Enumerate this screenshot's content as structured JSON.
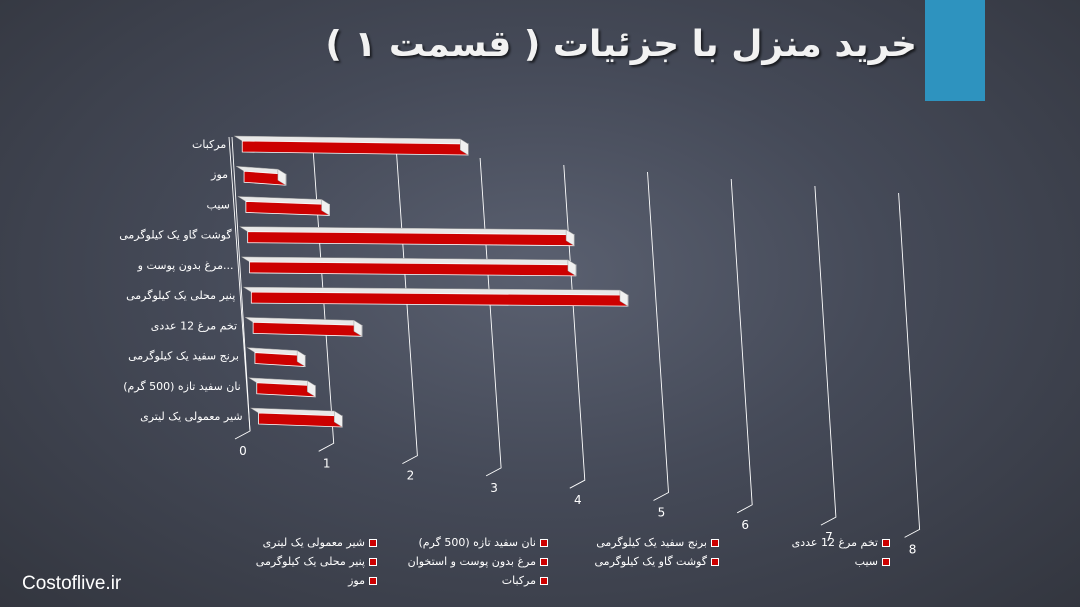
{
  "slide": {
    "title": "خرید منزل با جزئیات ( قسمت ۱ )",
    "site": "Costoflive.ir",
    "accent_color": "#2e93bf"
  },
  "chart_data": {
    "type": "bar",
    "orientation": "horizontal",
    "categories": [
      "مرکبات",
      "موز",
      "سیب",
      "گوشت گاو یک کیلوگرمی",
      "مرغ بدون پوست و...",
      "پنیر محلی یک کیلوگرمی",
      "تخم مرغ 12 عددی",
      "برنج سفید یک کیلوگرمی",
      "نان سفید تازه (500 گرم)",
      "شیر معمولی یک لیتری"
    ],
    "values": [
      2.7,
      0.5,
      1.0,
      3.9,
      3.9,
      4.5,
      1.3,
      0.6,
      0.7,
      1.0
    ],
    "x_ticks": [
      "0",
      "1",
      "2",
      "3",
      "4",
      "5",
      "6",
      "7",
      "8"
    ],
    "xlim": [
      0,
      8
    ],
    "bar_color": "#cc0000",
    "grid": true,
    "legend_position": "bottom",
    "legend": [
      "شیر معمولی یک لیتری",
      "نان سفید تازه (500 گرم)",
      "برنج سفید یک کیلوگرمی",
      "تخم مرغ 12 عددی",
      "پنیر محلی یک کیلوگرمی",
      "مرغ بدون پوست و استخوان",
      "گوشت گاو یک کیلوگرمی",
      "سیب",
      "موز",
      "مرکبات"
    ]
  }
}
